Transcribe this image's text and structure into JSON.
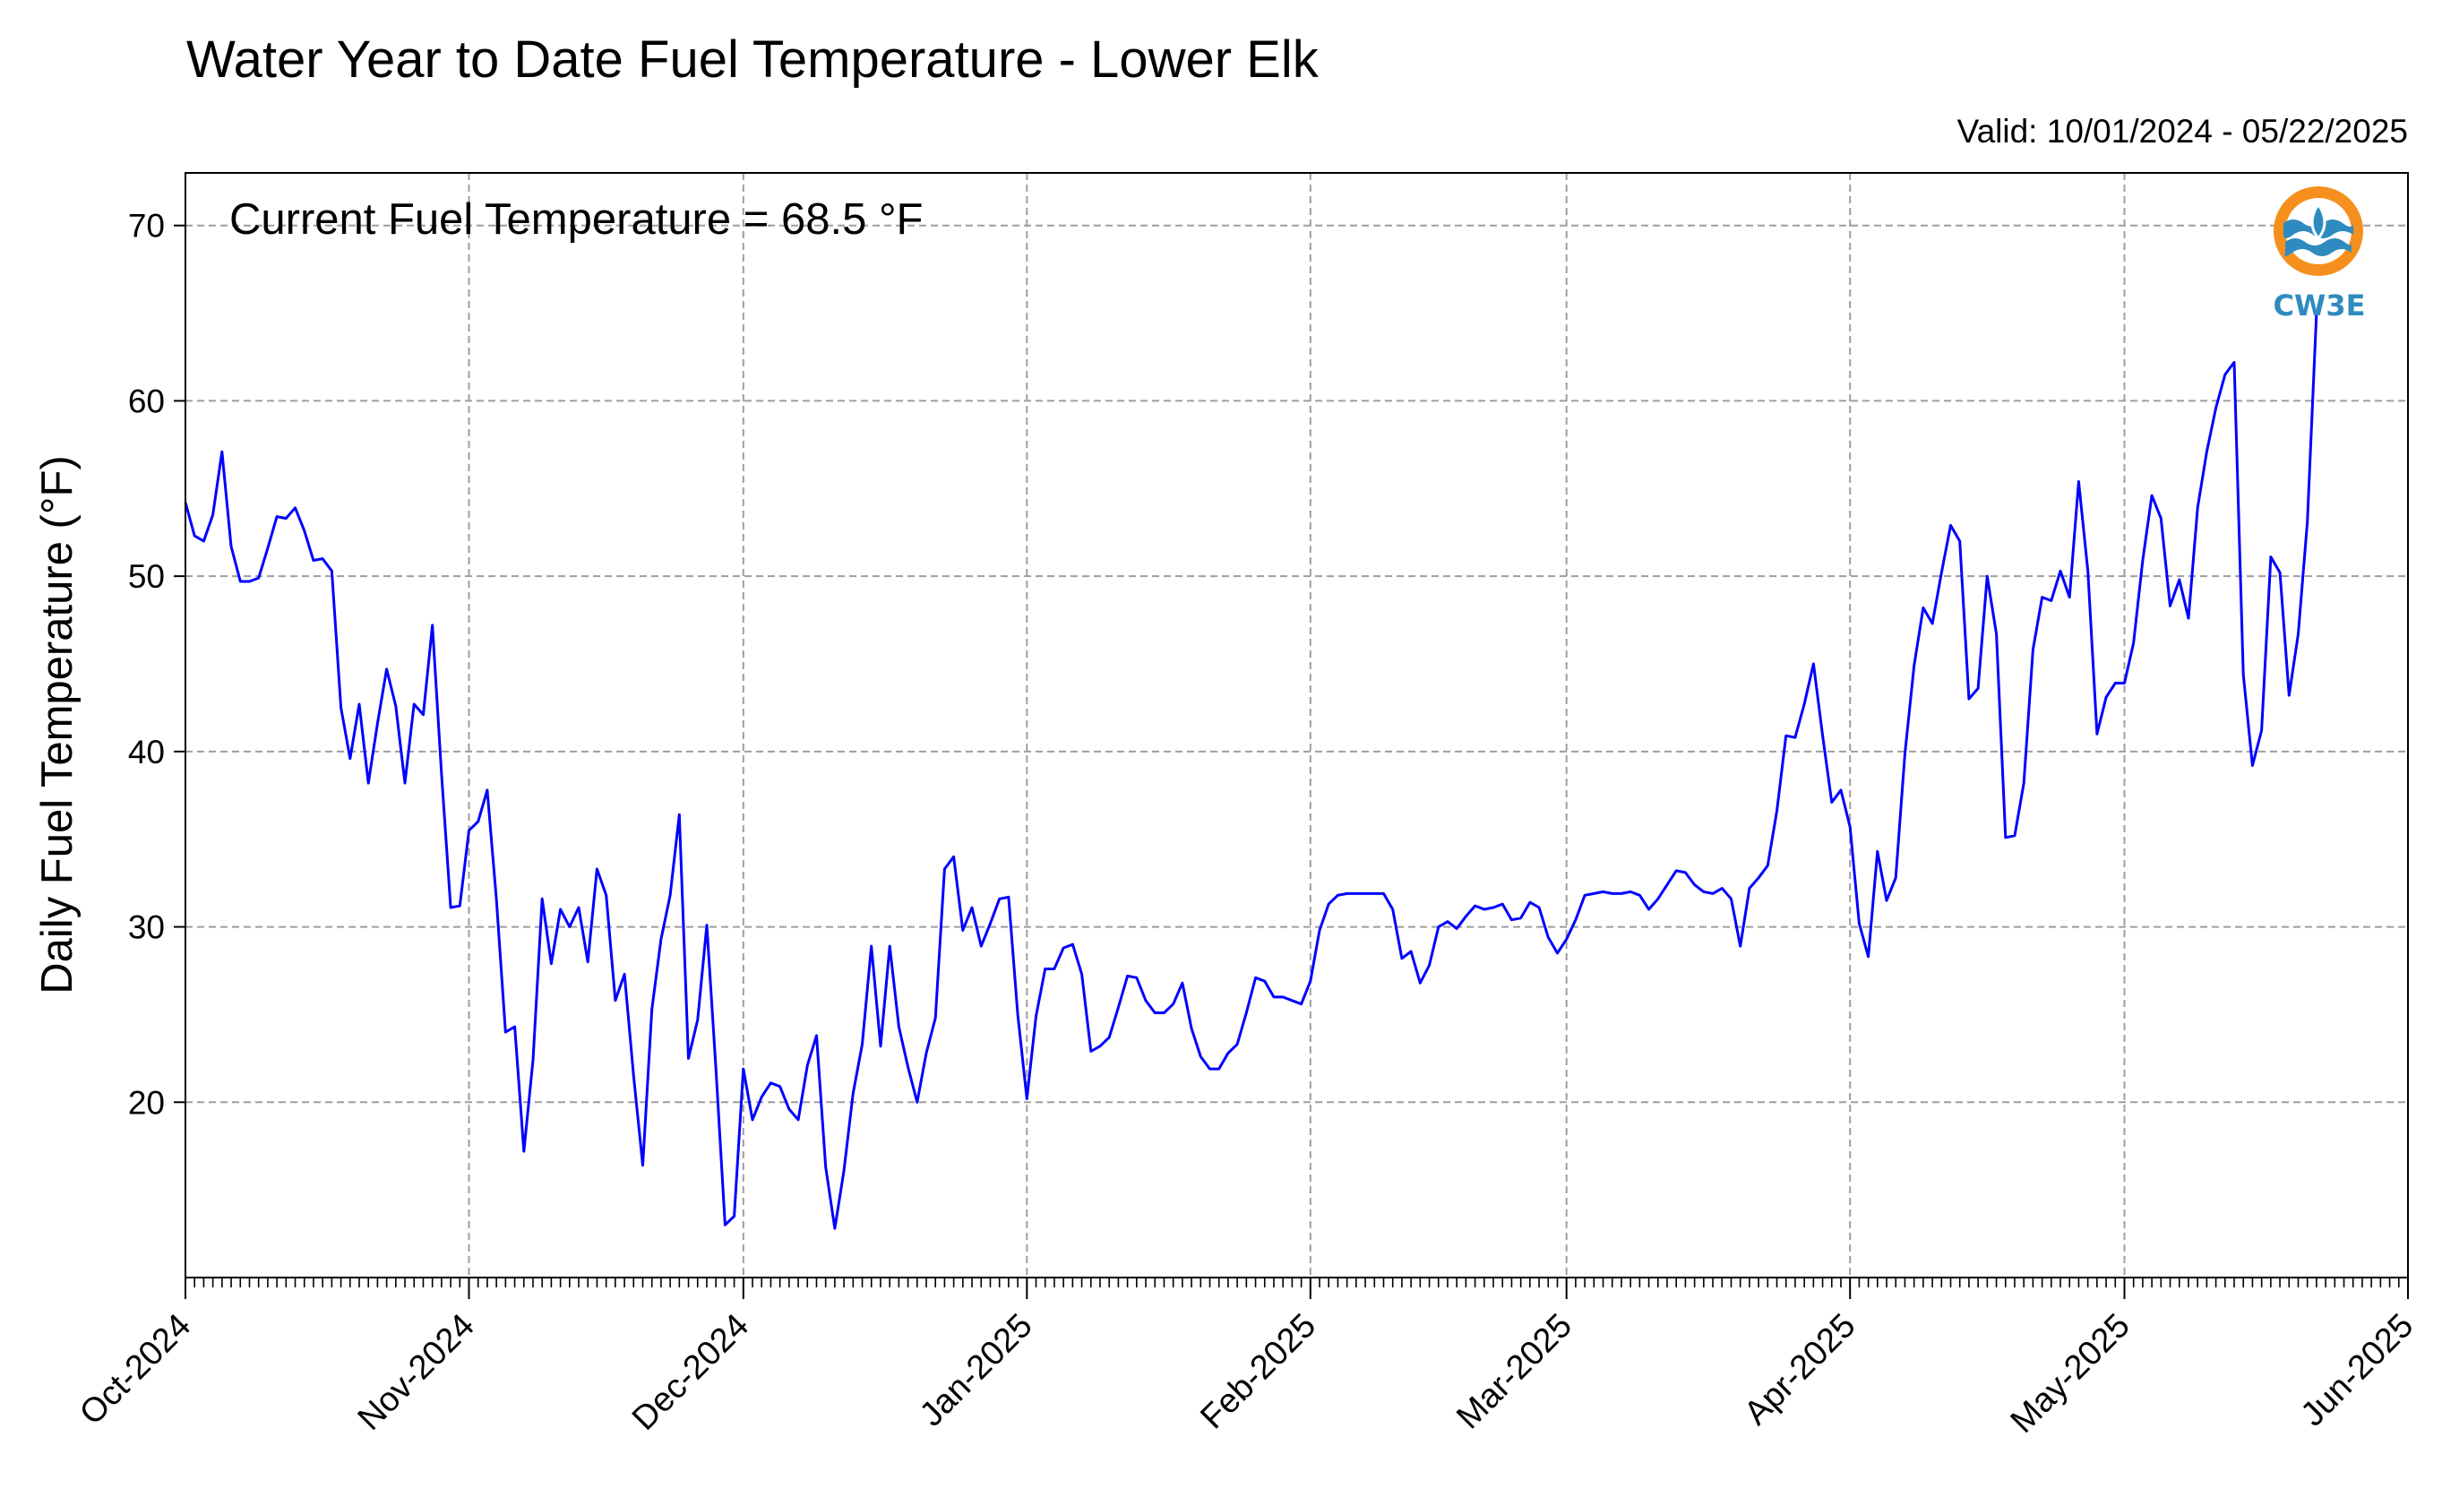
{
  "colors": {
    "series": "#0000ff",
    "grid": "#9e9e9e",
    "logo_orange": "#f5901e",
    "logo_blue": "#2f8bbf"
  },
  "logo": {
    "icon": "cw3e-logo-icon",
    "text": "CW3E"
  },
  "chart_data": {
    "type": "line",
    "title": "Water Year to Date Fuel Temperature - Lower Elk",
    "subtitle": "Valid: 10/01/2024 - 05/22/2025",
    "annotation": "Current Fuel Temperature = 68.5 °F",
    "ylabel": "Daily Fuel Temperature (°F)",
    "xlabel": "",
    "xlim": [
      "2024-10-01",
      "2025-06-01"
    ],
    "ylim": [
      10,
      73
    ],
    "yticks": [
      20,
      30,
      40,
      50,
      60,
      70
    ],
    "xticks": [
      {
        "date": "2024-10-01",
        "label": "Oct-2024"
      },
      {
        "date": "2024-11-01",
        "label": "Nov-2024"
      },
      {
        "date": "2024-12-01",
        "label": "Dec-2024"
      },
      {
        "date": "2025-01-01",
        "label": "Jan-2025"
      },
      {
        "date": "2025-02-01",
        "label": "Feb-2025"
      },
      {
        "date": "2025-03-01",
        "label": "Mar-2025"
      },
      {
        "date": "2025-04-01",
        "label": "Apr-2025"
      },
      {
        "date": "2025-05-01",
        "label": "May-2025"
      },
      {
        "date": "2025-06-01",
        "label": "Jun-2025"
      }
    ],
    "minor_ticks": "daily",
    "grid": true,
    "series": [
      {
        "start": "2024-10-01",
        "step": "1 day",
        "values": [
          54.2,
          52.3,
          52.0,
          53.5,
          57.1,
          51.7,
          49.7,
          49.7,
          49.9,
          51.6,
          53.4,
          53.3,
          53.9,
          52.6,
          50.9,
          51.0,
          50.3,
          42.5,
          39.6,
          42.7,
          38.2,
          41.6,
          44.7,
          42.6,
          38.2,
          42.7,
          42.1,
          47.2,
          38.7,
          31.1,
          31.2,
          35.5,
          36.0,
          37.8,
          31.6,
          24.0,
          24.3,
          17.2,
          22.4,
          31.6,
          27.9,
          31.0,
          30.0,
          31.1,
          28.0,
          33.3,
          31.8,
          25.8,
          27.3,
          21.5,
          16.4,
          25.3,
          29.3,
          31.8,
          36.4,
          22.5,
          24.7,
          30.1,
          21.9,
          13.0,
          13.5,
          21.9,
          19.0,
          20.3,
          21.1,
          20.9,
          19.6,
          19.0,
          22.1,
          23.8,
          16.3,
          12.8,
          16.1,
          20.5,
          23.3,
          28.9,
          23.2,
          28.9,
          24.3,
          22.0,
          20.0,
          22.8,
          24.8,
          33.3,
          34.0,
          29.8,
          31.1,
          28.9,
          30.2,
          31.6,
          31.7,
          25.0,
          20.2,
          24.9,
          27.6,
          27.6,
          28.8,
          29.0,
          27.3,
          22.9,
          23.2,
          23.7,
          25.4,
          27.2,
          27.1,
          25.8,
          25.1,
          25.1,
          25.6,
          26.8,
          24.2,
          22.6,
          21.9,
          21.9,
          22.8,
          23.3,
          25.1,
          27.1,
          26.9,
          26.0,
          26.0,
          25.8,
          25.6,
          26.9,
          29.8,
          31.3,
          31.8,
          31.9,
          31.9,
          31.9,
          31.9,
          31.9,
          31.0,
          28.2,
          28.6,
          26.8,
          27.8,
          30.0,
          30.3,
          29.9,
          30.6,
          31.2,
          31.0,
          31.1,
          31.3,
          30.4,
          30.5,
          31.4,
          31.1,
          29.4,
          28.5,
          29.3,
          30.4,
          31.8,
          31.9,
          32.0,
          31.9,
          31.9,
          32.0,
          31.8,
          31.0,
          31.6,
          32.4,
          33.2,
          33.1,
          32.4,
          32.0,
          31.9,
          32.2,
          31.6,
          28.9,
          32.2,
          32.8,
          33.5,
          36.6,
          40.9,
          40.8,
          42.7,
          45.0,
          40.9,
          37.1,
          37.8,
          35.7,
          30.2,
          28.3,
          34.3,
          31.5,
          32.8,
          39.9,
          44.9,
          48.2,
          47.3,
          50.2,
          52.9,
          52.0,
          43.0,
          43.6,
          50.0,
          46.7,
          35.1,
          35.2,
          38.2,
          45.8,
          48.8,
          48.6,
          50.3,
          48.8,
          55.4,
          50.3,
          41.0,
          43.1,
          43.9,
          43.9,
          46.2,
          50.9,
          54.6,
          53.3,
          48.3,
          49.8,
          47.6,
          53.9,
          57.1,
          59.6,
          61.5,
          62.2,
          44.4,
          39.2,
          41.2,
          51.1,
          50.2,
          43.2,
          46.7,
          53.1,
          65.0
        ]
      }
    ]
  }
}
